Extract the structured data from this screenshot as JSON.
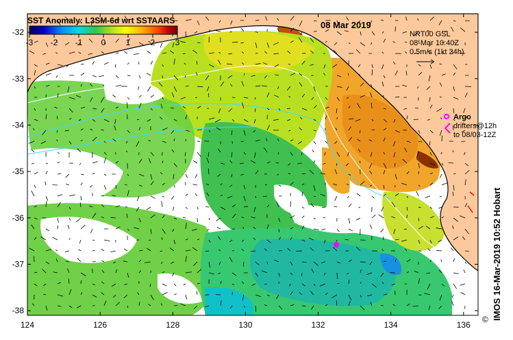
{
  "map": {
    "title": "SST Anomaly: L3SM-6d wrt SSTAARS",
    "date": "08 Mar 2019",
    "colorbar": {
      "ticks": [
        "-3",
        "-2",
        "-1",
        "0",
        "1",
        "2",
        "3"
      ],
      "colors": [
        "#000080",
        "#0000ff",
        "#00aaff",
        "#00e0e0",
        "#40d040",
        "#a0e000",
        "#ffff00",
        "#ffa000",
        "#ff4000",
        "#c00000",
        "#800000"
      ]
    },
    "current_legend": {
      "line1": "NRT00 GSL",
      "line2": "08-Mar 10:40Z",
      "line3": "0.5m/s (1kt 24h)"
    },
    "argo_legend": {
      "label": "Argo",
      "line2": "drifters@12h",
      "line3": "to 08/03-12Z"
    },
    "credit": "IMOS 16-Mar-2019 10:52 Hobart",
    "copyright": "©",
    "x_ticks": [
      "124",
      "126",
      "128",
      "130",
      "132",
      "134",
      "136"
    ],
    "y_ticks": [
      "-32",
      "-33",
      "-34",
      "-35",
      "-36",
      "-37",
      "-38"
    ],
    "colors": {
      "land": "#fbc99b",
      "coast": "#000000",
      "argo": "#ff00ff",
      "drifter": "#ff00ff"
    }
  }
}
